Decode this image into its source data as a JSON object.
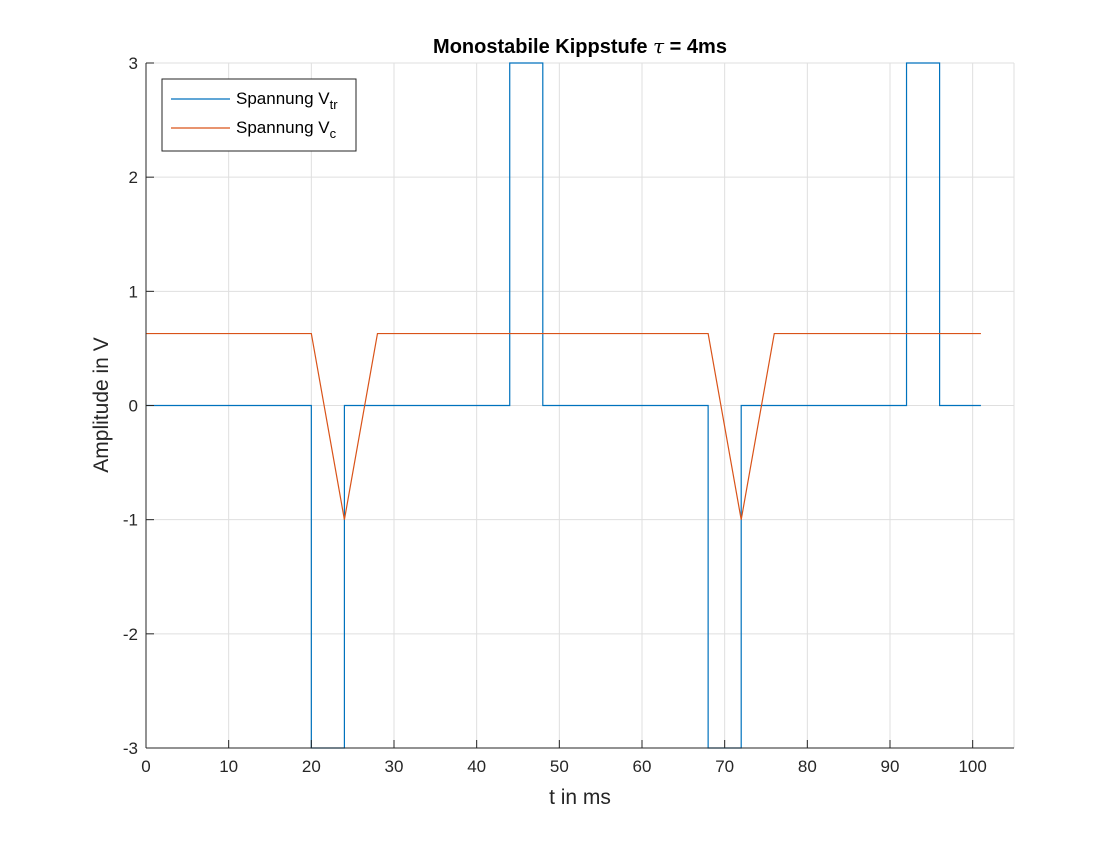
{
  "chart_data": {
    "type": "line",
    "title": "Monostabile Kippstufe τ = 4ms",
    "title_parts": {
      "prefix": "Monostabile Kippstufe ",
      "symbol": "τ",
      "suffix": " = 4ms"
    },
    "xlabel": "t in ms",
    "ylabel": "Amplitude in V",
    "xlim": [
      0,
      105
    ],
    "ylim": [
      -3,
      3
    ],
    "xticks": [
      0,
      10,
      20,
      30,
      40,
      50,
      60,
      70,
      80,
      90,
      100
    ],
    "yticks": [
      -3,
      -2,
      -1,
      0,
      1,
      2,
      3
    ],
    "xtick_labels": [
      "0",
      "10",
      "20",
      "30",
      "40",
      "50",
      "60",
      "70",
      "80",
      "90",
      "100"
    ],
    "ytick_labels": [
      "-3",
      "-2",
      "-1",
      "0",
      "1",
      "2",
      "3"
    ],
    "grid": true,
    "box": "open top and right",
    "legend_position": "top-left",
    "legend": [
      {
        "base": "Spannung V",
        "sub": "tr",
        "color": "#0072BD"
      },
      {
        "base": "Spannung V",
        "sub": "c",
        "color": "#D95319"
      }
    ],
    "series": [
      {
        "name": "Spannung V_tr",
        "color": "#0072BD",
        "points": [
          [
            0,
            0
          ],
          [
            20,
            0
          ],
          [
            20,
            -3
          ],
          [
            24,
            -3
          ],
          [
            24,
            0
          ],
          [
            44,
            0
          ],
          [
            44,
            3
          ],
          [
            48,
            3
          ],
          [
            48,
            0
          ],
          [
            68,
            0
          ],
          [
            68,
            -3
          ],
          [
            72,
            -3
          ],
          [
            72,
            0
          ],
          [
            92,
            0
          ],
          [
            92,
            3
          ],
          [
            96,
            3
          ],
          [
            96,
            0
          ],
          [
            101,
            0
          ]
        ]
      },
      {
        "name": "Spannung V_c",
        "color": "#D95319",
        "points": [
          [
            0,
            0.63
          ],
          [
            20,
            0.63
          ],
          [
            24,
            -1.0
          ],
          [
            28,
            0.63
          ],
          [
            68,
            0.63
          ],
          [
            72,
            -1.0
          ],
          [
            76,
            0.63
          ],
          [
            101,
            0.63
          ]
        ]
      }
    ]
  }
}
